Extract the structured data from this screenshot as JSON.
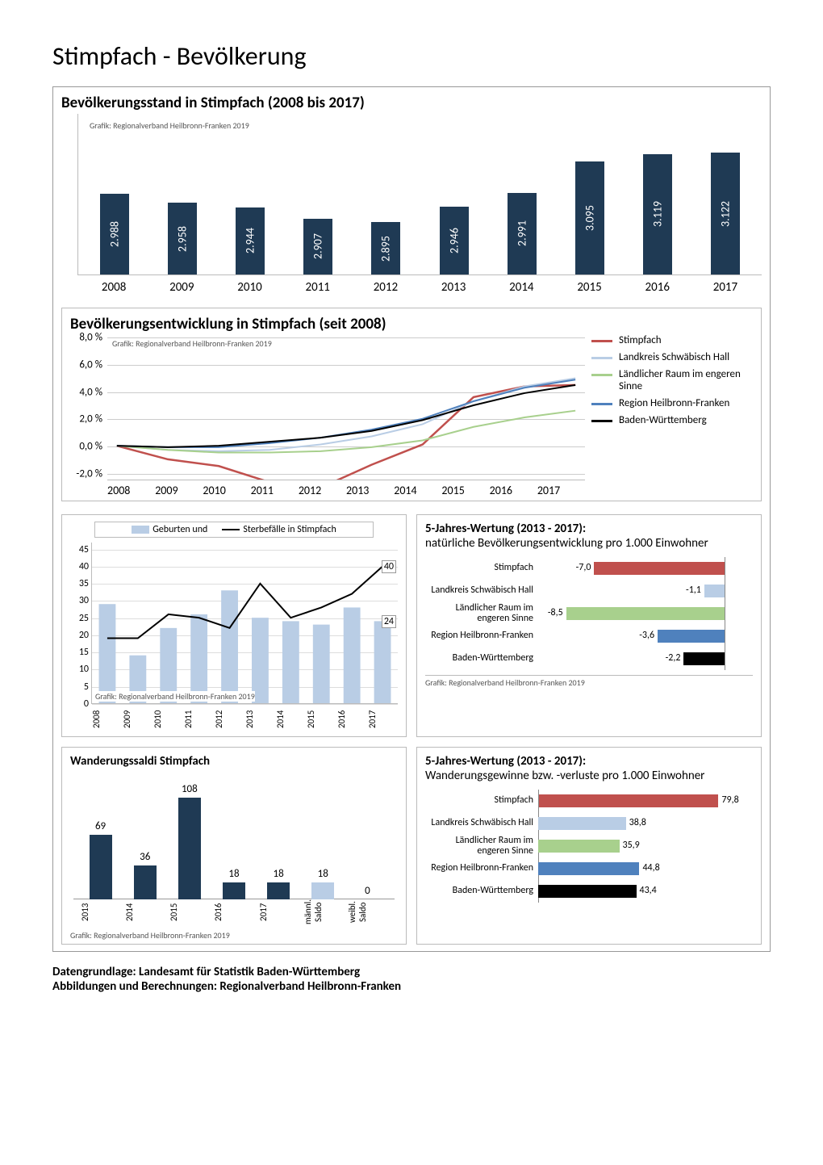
{
  "page_title": "Stimpfach - Bevölkerung",
  "credit_text": "Grafik: Regionalverband Heilbronn-Franken 2019",
  "footer_line1": "Datengrundlage: Landesamt für Statistik Baden-Württemberg",
  "footer_line2": "Abbildungen und Berechnungen: Regionalverband Heilbronn-Franken",
  "chart1": {
    "title": "Bevölkerungsstand in Stimpfach (2008 bis 2017)",
    "type": "bar",
    "years": [
      "2008",
      "2009",
      "2010",
      "2011",
      "2012",
      "2013",
      "2014",
      "2015",
      "2016",
      "2017"
    ],
    "values": [
      2988,
      2958,
      2944,
      2907,
      2895,
      2946,
      2991,
      3095,
      3119,
      3122
    ],
    "value_labels": [
      "2.988",
      "2.958",
      "2.944",
      "2.907",
      "2.895",
      "2.946",
      "2.991",
      "3.095",
      "3.119",
      "3.122"
    ],
    "bar_color": "#1f3a54",
    "value_label_color": "#ffffff",
    "y_max": 3200,
    "y_min": 2750
  },
  "chart2": {
    "title": "Bevölkerungsentwicklung in Stimpfach (seit 2008)",
    "type": "line",
    "years": [
      "2008",
      "2009",
      "2010",
      "2011",
      "2012",
      "2013",
      "2014",
      "2015",
      "2016",
      "2017"
    ],
    "y_ticks": [
      -2,
      0,
      2,
      4,
      6,
      8
    ],
    "y_tick_labels": [
      "-2,0 %",
      "0,0 %",
      "2,0 %",
      "4,0 %",
      "6,0 %",
      "8,0 %"
    ],
    "y_min": -2.5,
    "y_max": 8.2,
    "series": [
      {
        "label": "Stimpfach",
        "color": "#c0504d",
        "width": 2.5,
        "values": [
          0,
          -1.0,
          -1.5,
          -2.7,
          -3.1,
          -1.4,
          0.1,
          3.6,
          4.4,
          4.5
        ]
      },
      {
        "label": "Landkreis Schwäbisch Hall",
        "color": "#b9cde5",
        "width": 2,
        "values": [
          0,
          -0.3,
          -0.4,
          -0.3,
          0.1,
          0.7,
          1.6,
          3.3,
          4.4,
          5.0
        ]
      },
      {
        "label": "Ländlicher Raum im engeren Sinne",
        "color": "#a8d08d",
        "width": 2,
        "values": [
          0,
          -0.3,
          -0.5,
          -0.5,
          -0.4,
          -0.1,
          0.4,
          1.4,
          2.1,
          2.6
        ]
      },
      {
        "label": "Region Heilbronn-Franken",
        "color": "#4f81bd",
        "width": 2,
        "values": [
          0,
          -0.1,
          -0.1,
          0.2,
          0.6,
          1.2,
          2.0,
          3.3,
          4.3,
          4.9
        ]
      },
      {
        "label": "Baden-Württemberg",
        "color": "#000000",
        "width": 2,
        "values": [
          0,
          -0.1,
          0.0,
          0.3,
          0.6,
          1.1,
          1.9,
          3.0,
          3.9,
          4.5
        ]
      }
    ]
  },
  "chart3": {
    "type": "combo",
    "legend_births": "Geburten und",
    "legend_deaths": "Sterbefälle in Stimpfach",
    "years": [
      "2008",
      "2009",
      "2010",
      "2011",
      "2012",
      "2013",
      "2014",
      "2015",
      "2016",
      "2017"
    ],
    "y_ticks": [
      0,
      5,
      10,
      15,
      20,
      25,
      30,
      35,
      40,
      45
    ],
    "y_max": 47,
    "births_color": "#b9cde5",
    "deaths_color": "#000000",
    "births": [
      29,
      14,
      22,
      26,
      33,
      25,
      24,
      23,
      28,
      24
    ],
    "deaths": [
      19,
      19,
      26,
      25,
      22,
      35,
      25,
      28,
      32,
      40
    ],
    "annot_births": "24",
    "annot_deaths": "40"
  },
  "chart4": {
    "type": "hbar",
    "title_bold": "5-Jahres-Wertung (2013 - 2017):",
    "title_rest": "natürliche Bevölkerungsentwicklung pro 1.000 Einwohner",
    "x_min": -10,
    "x_max": 1.5,
    "zero_at_pct": 87,
    "rows": [
      {
        "label": "Stimpfach",
        "value": -7.0,
        "vlabel": "-7,0",
        "color": "#c0504d"
      },
      {
        "label": "Landkreis Schwäbisch Hall",
        "value": -1.1,
        "vlabel": "-1,1",
        "color": "#b9cde5"
      },
      {
        "label": "Ländlicher Raum im engeren Sinne",
        "value": -8.5,
        "vlabel": "-8,5",
        "color": "#a8d08d"
      },
      {
        "label": "Region Heilbronn-Franken",
        "value": -3.6,
        "vlabel": "-3,6",
        "color": "#4f81bd"
      },
      {
        "label": "Baden-Württemberg",
        "value": -2.2,
        "vlabel": "-2,2",
        "color": "#000000"
      }
    ]
  },
  "chart5": {
    "type": "bar",
    "title": "Wanderungssaldi Stimpfach",
    "categories": [
      "2013",
      "2014",
      "2015",
      "2016",
      "2017",
      "männl. Saldo",
      "weibl. Saldo"
    ],
    "values": [
      69,
      36,
      108,
      18,
      18,
      18,
      0
    ],
    "colors": [
      "#1f3a54",
      "#1f3a54",
      "#1f3a54",
      "#1f3a54",
      "#1f3a54",
      "#b9cde5",
      "#e6b9b8"
    ],
    "y_max": 120
  },
  "chart6": {
    "type": "hbar",
    "title_bold": "5-Jahres-Wertung (2013 - 2017):",
    "title_rest": "Wanderungsgewinne bzw. -verluste pro 1.000 Einwohner",
    "x_min": 0,
    "x_max": 95,
    "zero_at_pct": 0,
    "rows": [
      {
        "label": "Stimpfach",
        "value": 79.8,
        "vlabel": "79,8",
        "color": "#c0504d"
      },
      {
        "label": "Landkreis Schwäbisch Hall",
        "value": 38.8,
        "vlabel": "38,8",
        "color": "#b9cde5"
      },
      {
        "label": "Ländlicher Raum im engeren Sinne",
        "value": 35.9,
        "vlabel": "35,9",
        "color": "#a8d08d"
      },
      {
        "label": "Region Heilbronn-Franken",
        "value": 44.8,
        "vlabel": "44,8",
        "color": "#4f81bd"
      },
      {
        "label": "Baden-Württemberg",
        "value": 43.4,
        "vlabel": "43,4",
        "color": "#000000"
      }
    ]
  }
}
